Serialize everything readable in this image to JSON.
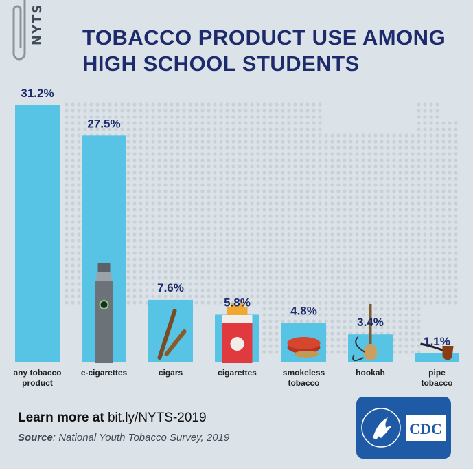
{
  "brand": "NYTS",
  "chart_data": {
    "type": "bar",
    "title": "TOBACCO PRODUCT USE AMONG HIGH SCHOOL STUDENTS",
    "categories": [
      [
        "any tobacco",
        "product"
      ],
      [
        "e-cigarettes"
      ],
      [
        "cigars"
      ],
      [
        "cigarettes"
      ],
      [
        "smokeless",
        "tobacco"
      ],
      [
        "hookah"
      ],
      [
        "pipe",
        "tobacco"
      ]
    ],
    "values": [
      31.2,
      27.5,
      7.6,
      5.8,
      4.8,
      3.4,
      1.1
    ],
    "value_labels": [
      "31.2%",
      "27.5%",
      "7.6%",
      "5.8%",
      "4.8%",
      "3.4%",
      "1.1%"
    ],
    "ylim": [
      0,
      31.2
    ],
    "unit": "%",
    "bar_color": "#57c3e5",
    "label_color": "#1d2a6b",
    "icons": [
      "",
      "e-cigarette-icon",
      "cigar-icon",
      "cigarette-pack-icon",
      "smokeless-tin-icon",
      "hookah-icon",
      "pipe-icon"
    ]
  },
  "footer": {
    "learn_prefix": "Learn more at",
    "learn_link": "bit.ly/NYTS-2019",
    "source_label": "Source",
    "source_text": ": National Youth Tobacco Survey, 2019"
  },
  "logo": {
    "text": "CDC",
    "color": "#1f5aa6"
  }
}
